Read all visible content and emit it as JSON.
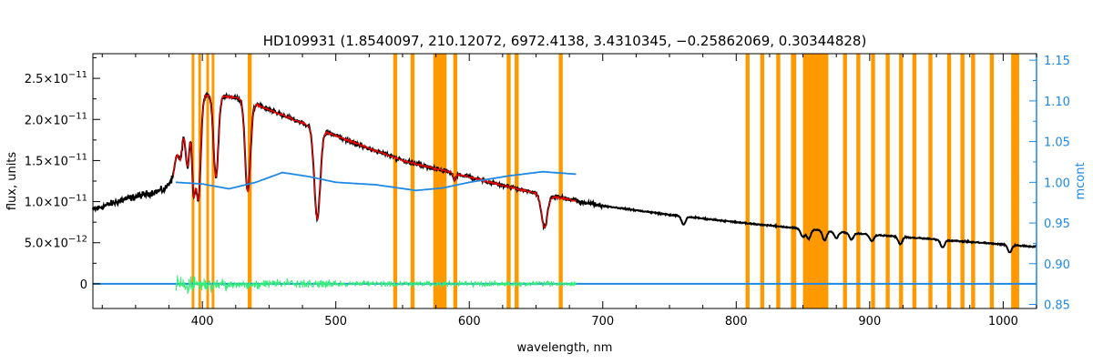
{
  "chart_data": {
    "type": "line",
    "title": "HD109931    (1.8540097, 210.12072, 6972.4138, 3.4310345, −0.25862069, 0.30344828)",
    "xlabel": "wavelength, nm",
    "ylabel": "flux, units",
    "y2label": "mcont",
    "xlim": [
      318,
      1025
    ],
    "ylim": [
      -3e-12,
      2.8e-11
    ],
    "y2lim": [
      0.845,
      1.158
    ],
    "x_ticks": [
      400,
      500,
      600,
      700,
      800,
      900,
      1000
    ],
    "x_tick_labels": [
      "400",
      "500",
      "600",
      "700",
      "800",
      "900",
      "1000"
    ],
    "y_ticks": [
      0,
      5e-12,
      1e-11,
      1.5e-11,
      2e-11,
      2.5e-11
    ],
    "y_tick_labels": [
      {
        "mantissa": "0",
        "exp": ""
      },
      {
        "mantissa": "5.0×10",
        "exp": "−12"
      },
      {
        "mantissa": "1.0×10",
        "exp": "−11"
      },
      {
        "mantissa": "1.5×10",
        "exp": "−11"
      },
      {
        "mantissa": "2.0×10",
        "exp": "−11"
      },
      {
        "mantissa": "2.5×10",
        "exp": "−11"
      }
    ],
    "y2_ticks": [
      0.85,
      0.9,
      0.95,
      1.0,
      1.05,
      1.1,
      1.15
    ],
    "y2_tick_labels": [
      "0.85",
      "0.90",
      "0.95",
      "1.00",
      "1.05",
      "1.10",
      "1.15"
    ],
    "colors": {
      "observed": "#000000",
      "model": "#ff0000",
      "residual": "#33ee77",
      "continuum": "#1e88e5",
      "mask": "#ff9900",
      "y2axis": "#1e88e5"
    },
    "masked_ranges": [
      [
        392,
        394
      ],
      [
        397,
        399
      ],
      [
        403,
        405
      ],
      [
        407,
        409
      ],
      [
        434,
        437
      ],
      [
        543,
        546
      ],
      [
        556,
        559
      ],
      [
        573,
        583
      ],
      [
        588,
        591
      ],
      [
        628,
        631
      ],
      [
        634,
        637
      ],
      [
        667,
        670
      ],
      [
        807,
        810
      ],
      [
        818,
        821
      ],
      [
        830,
        833
      ],
      [
        841,
        845
      ],
      [
        850,
        869
      ],
      [
        880,
        883
      ],
      [
        890,
        893
      ],
      [
        901,
        904
      ],
      [
        912,
        915
      ],
      [
        922,
        925
      ],
      [
        932,
        935
      ],
      [
        944,
        947
      ],
      [
        958,
        961
      ],
      [
        968,
        971
      ],
      [
        976,
        979
      ],
      [
        990,
        993
      ],
      [
        1006,
        1012
      ]
    ],
    "observed_anchors": [
      [
        318,
        9e-12
      ],
      [
        340,
        1.02e-11
      ],
      [
        360,
        1.1e-11
      ],
      [
        372,
        1.15e-11
      ],
      [
        378,
        1.3e-11
      ],
      [
        383,
        1.9e-11
      ],
      [
        390,
        2.05e-11
      ],
      [
        400,
        2.3e-11
      ],
      [
        410,
        2.3e-11
      ],
      [
        430,
        2.25e-11
      ],
      [
        460,
        2.05e-11
      ],
      [
        500,
        1.8e-11
      ],
      [
        550,
        1.5e-11
      ],
      [
        600,
        1.3e-11
      ],
      [
        650,
        1.1e-11
      ],
      [
        700,
        9.5e-12
      ],
      [
        750,
        8.4e-12
      ],
      [
        800,
        7.5e-12
      ],
      [
        850,
        6.7e-12
      ],
      [
        900,
        6e-12
      ],
      [
        950,
        5.4e-12
      ],
      [
        1000,
        4.8e-12
      ],
      [
        1025,
        4.5e-12
      ]
    ],
    "absorption_lines": [
      {
        "center": 383.5,
        "depth": 4e-12,
        "width": 1.5
      },
      {
        "center": 388.9,
        "depth": 6e-12,
        "width": 1.5
      },
      {
        "center": 393.4,
        "depth": 9e-12,
        "width": 1.2
      },
      {
        "center": 397.0,
        "depth": 1.2e-11,
        "width": 1.8
      },
      {
        "center": 410.2,
        "depth": 1e-11,
        "width": 1.8
      },
      {
        "center": 434.0,
        "depth": 1.1e-11,
        "width": 2.0
      },
      {
        "center": 486.1,
        "depth": 1.1e-11,
        "width": 2.2
      },
      {
        "center": 589.0,
        "depth": 8e-13,
        "width": 1.0
      },
      {
        "center": 656.3,
        "depth": 4e-12,
        "width": 2.2
      },
      {
        "center": 760.5,
        "depth": 1e-12,
        "width": 1.5
      },
      {
        "center": 849.8,
        "depth": 1e-12,
        "width": 1.5
      },
      {
        "center": 854.2,
        "depth": 1.2e-12,
        "width": 1.5
      },
      {
        "center": 866.2,
        "depth": 1.2e-12,
        "width": 1.5
      },
      {
        "center": 875.0,
        "depth": 8e-13,
        "width": 1.5
      },
      {
        "center": 886.3,
        "depth": 8e-13,
        "width": 1.5
      },
      {
        "center": 901.5,
        "depth": 8e-13,
        "width": 1.5
      },
      {
        "center": 922.9,
        "depth": 9e-13,
        "width": 1.5
      },
      {
        "center": 954.6,
        "depth": 9e-13,
        "width": 1.5
      },
      {
        "center": 1004.9,
        "depth": 9e-13,
        "width": 1.5
      }
    ],
    "model_range": [
      378,
      680
    ],
    "residual_range": [
      380,
      680
    ],
    "continuum_ratio": [
      [
        380,
        1.0
      ],
      [
        400,
        0.998
      ],
      [
        420,
        0.992
      ],
      [
        440,
        1.0
      ],
      [
        460,
        1.012
      ],
      [
        480,
        1.007
      ],
      [
        500,
        1.0
      ],
      [
        530,
        0.997
      ],
      [
        560,
        0.99
      ],
      [
        580,
        0.993
      ],
      [
        600,
        1.0
      ],
      [
        630,
        1.008
      ],
      [
        655,
        1.013
      ],
      [
        680,
        1.01
      ]
    ],
    "baseline": {
      "xlim": [
        318,
        1025
      ],
      "value": 0
    }
  }
}
